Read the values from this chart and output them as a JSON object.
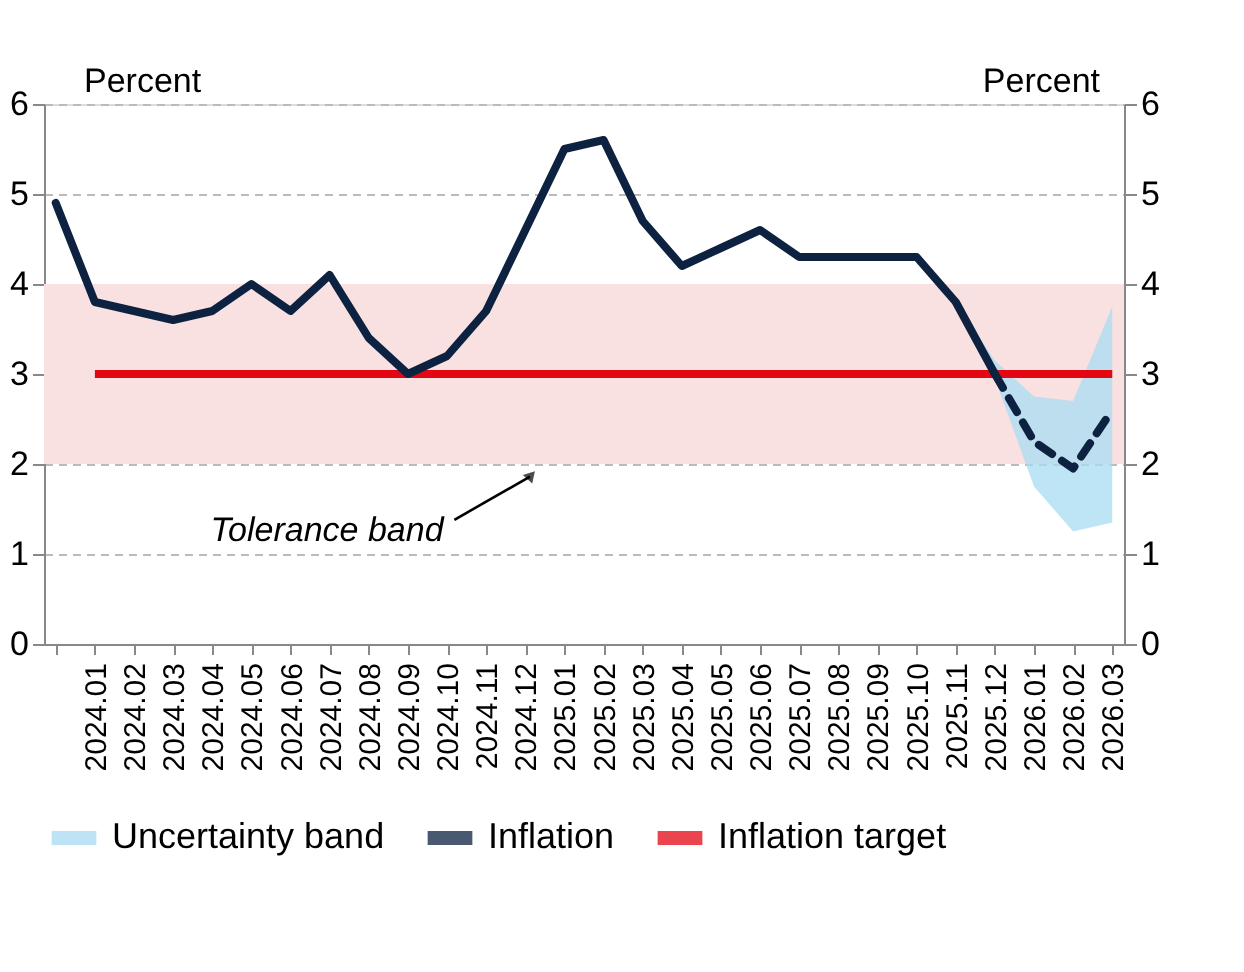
{
  "chart_data": {
    "type": "line",
    "categories": [
      null,
      "2024.01",
      "2024.02",
      "2024.03",
      "2024.04",
      "2024.05",
      "2024.06",
      "2024.07",
      "2024.08",
      "2024.09",
      "2024.10",
      "2024.11",
      "2024.12",
      "2025.01",
      "2025.02",
      "2025.03",
      "2025.04",
      "2025.05",
      "2025.06",
      "2025.07",
      "2025.08",
      "2025.09",
      "2025.10",
      "2025.11",
      "2025.12",
      "2026.01",
      "2026.02",
      "2026.03"
    ],
    "series": [
      {
        "name": "Inflation",
        "color": "#0d2240",
        "line_style": "solid",
        "values": [
          4.9,
          3.8,
          3.7,
          3.6,
          3.7,
          4.0,
          3.7,
          4.1,
          3.4,
          3.0,
          3.2,
          3.7,
          4.6,
          5.5,
          5.6,
          4.7,
          4.2,
          4.4,
          4.6,
          4.3,
          4.3,
          4.3,
          4.3,
          3.8,
          3.0,
          null,
          null,
          null
        ]
      },
      {
        "color": "#0d2240",
        "line_style": "dashed",
        "values": [
          null,
          null,
          null,
          null,
          null,
          null,
          null,
          null,
          null,
          null,
          null,
          null,
          null,
          null,
          null,
          null,
          null,
          null,
          null,
          null,
          null,
          null,
          null,
          null,
          3.0,
          2.25,
          1.95,
          2.6
        ],
        "lower": [
          null,
          null,
          null,
          null,
          null,
          null,
          null,
          null,
          null,
          null,
          null,
          null,
          null,
          null,
          null,
          null,
          null,
          null,
          null,
          null,
          null,
          null,
          null,
          3.8,
          2.95,
          1.75,
          1.25,
          1.35
        ],
        "upper": [
          null,
          null,
          null,
          null,
          null,
          null,
          null,
          null,
          null,
          null,
          null,
          null,
          null,
          null,
          null,
          null,
          null,
          null,
          null,
          null,
          null,
          null,
          null,
          3.8,
          3.15,
          2.75,
          2.7,
          3.75
        ]
      }
    ],
    "ylabel": "Percent",
    "y2label": "Percent",
    "ylim": [
      0,
      6
    ],
    "yticks": [
      0,
      1,
      2,
      3,
      4,
      5,
      6
    ],
    "y2lim": [
      0,
      6
    ],
    "y2ticks": [
      0,
      1,
      2,
      3,
      4,
      5,
      6
    ],
    "ref_lines": [
      {
        "axis": "y",
        "value": 3,
        "label": "Inflation target",
        "color": "#e30613"
      }
    ],
    "bands": [
      {
        "axis": "y",
        "from": 2,
        "to": 4,
        "label": "Tolerance band",
        "color": "#fae1e1"
      }
    ],
    "annotations": [
      "Uncertainty band"
    ],
    "grid": "y",
    "legend": "bottom"
  }
}
